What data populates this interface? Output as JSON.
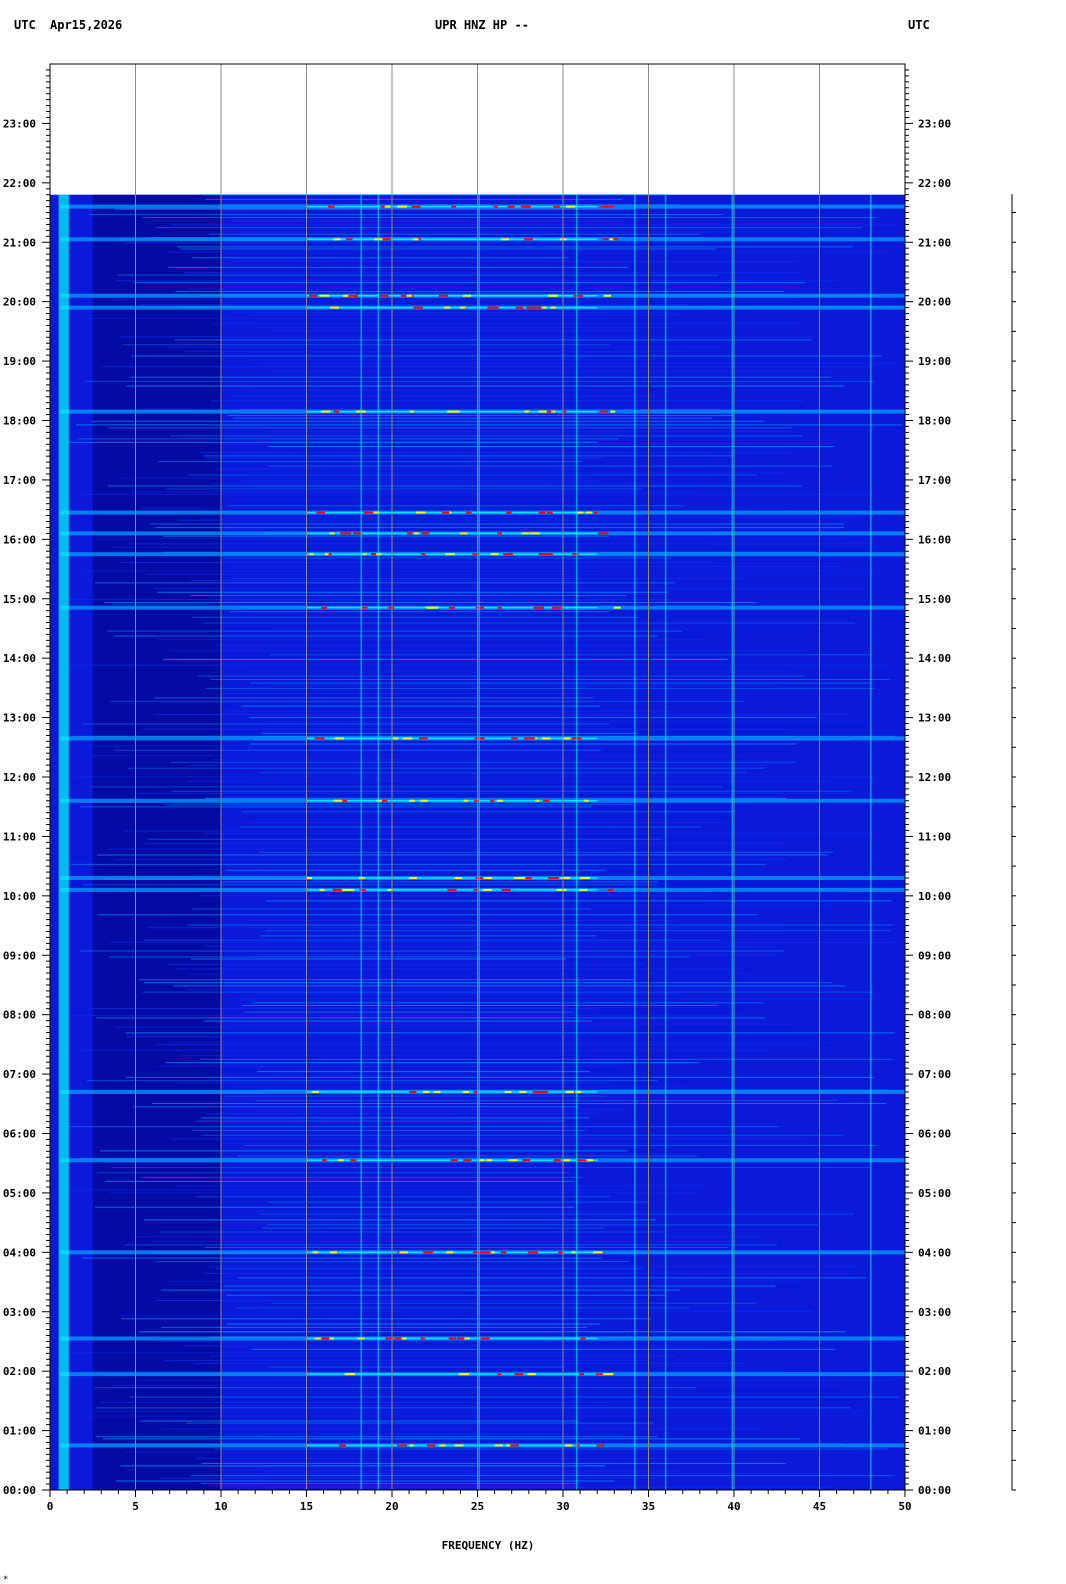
{
  "header": {
    "left_tz": "UTC",
    "date": "Apr15,2026",
    "station": "UPR HNZ HP --",
    "right_tz": "UTC"
  },
  "chart_data": {
    "type": "heatmap",
    "title": "UPR HNZ HP --",
    "xlabel": "FREQUENCY (HZ)",
    "ylabel": "",
    "xlim": [
      0,
      50
    ],
    "ylim_hours": [
      0,
      24
    ],
    "data_end_hour": 21.8,
    "x_ticks": [
      "0",
      "5",
      "10",
      "15",
      "20",
      "25",
      "30",
      "35",
      "40",
      "45",
      "50"
    ],
    "y_ticks": [
      "00:00",
      "01:00",
      "02:00",
      "03:00",
      "04:00",
      "05:00",
      "06:00",
      "07:00",
      "08:00",
      "09:00",
      "10:00",
      "11:00",
      "12:00",
      "13:00",
      "14:00",
      "15:00",
      "16:00",
      "17:00",
      "18:00",
      "19:00",
      "20:00",
      "21:00",
      "22:00",
      "23:00"
    ],
    "grid": true,
    "colormap": [
      "#00007a",
      "#0000c8",
      "#1030ff",
      "#00a0ff",
      "#00ffff",
      "#ffff00",
      "#ff0000"
    ],
    "background_color": "#0a1ad8",
    "persistent_lines_hz": [
      0.7,
      18.2,
      19.2,
      25.1,
      30.8,
      34.2,
      36.0,
      39.9,
      48.0
    ],
    "broadband_events_hour": [
      0.75,
      1.95,
      2.55,
      4.0,
      5.55,
      6.7,
      10.1,
      10.3,
      11.6,
      12.65,
      14.85,
      15.75,
      16.1,
      16.45,
      18.15,
      19.9,
      20.1,
      21.05,
      21.6
    ],
    "status_glyph": "*"
  }
}
